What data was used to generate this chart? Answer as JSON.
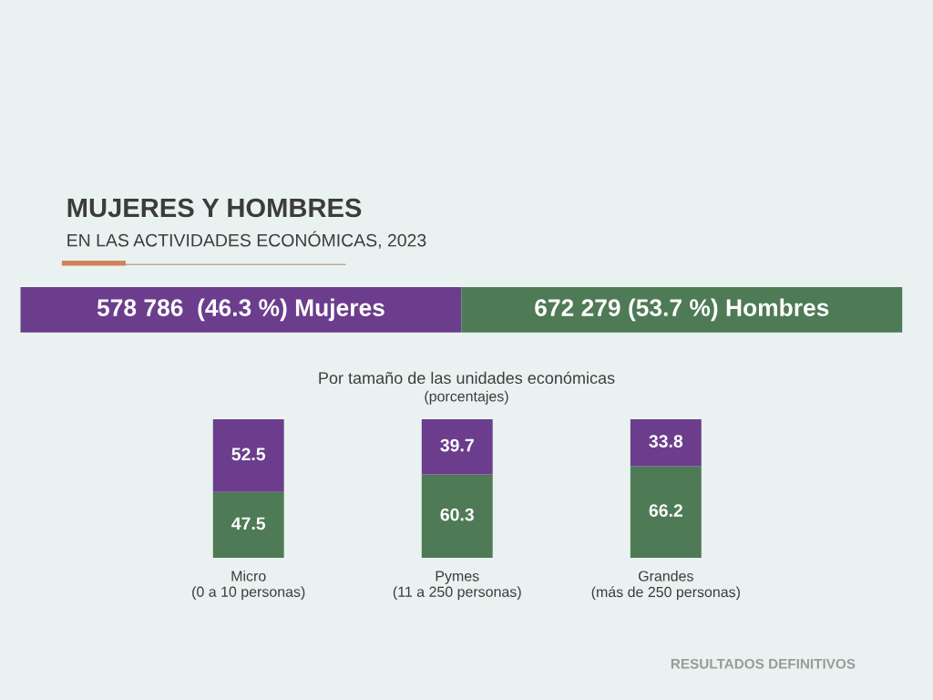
{
  "chart_data": {
    "type": "bar",
    "title": "MUJERES Y HOMBRES",
    "subtitle": "EN LAS ACTIVIDADES ECONÓMICAS, 2023",
    "annotations": [
      "Por tamaño de las unidades económicas",
      "(porcentajes)",
      "RESULTADOS DEFINITIVOS"
    ],
    "categories": [
      "Micro\n(0 a 10 personas)",
      "Pymes\n(11 a 250 personas)",
      "Grandes\n(más de 250 personas)"
    ],
    "series": [
      {
        "name": "672 279 (53.7 %) Hombres",
        "color": "#4e7a55",
        "values": [
          47.5,
          60.3,
          66.2
        ]
      },
      {
        "name": "578 786  (46.3 %) Mujeres",
        "color": "#6b3d8c",
        "values": [
          52.5,
          39.7,
          33.8
        ]
      }
    ],
    "stacked": true,
    "ylim": [
      0,
      100
    ],
    "data_labels": true,
    "tick_labels": "x",
    "legend": "top",
    "grid": false
  }
}
